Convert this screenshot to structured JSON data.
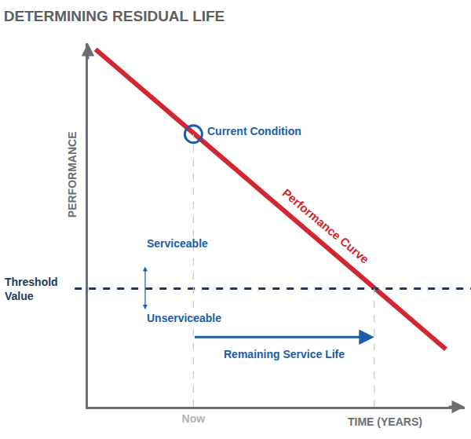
{
  "chart_data": {
    "type": "line",
    "title": "DETERMINING RESIDUAL LIFE",
    "x_label": "TIME (YEARS)",
    "y_label": "PERFORMANCE",
    "x": [
      2,
      95
    ],
    "series": [
      {
        "name": "Performance Curve",
        "color": "#d22630",
        "values": [
          118,
          19
        ]
      }
    ],
    "xlim": [
      0,
      100
    ],
    "ylim": [
      0,
      120
    ],
    "xticks": [
      {
        "value": 28,
        "label": "Now"
      }
    ],
    "yticks": [],
    "tick_labels": "x",
    "grid": false,
    "current_condition": {
      "label": "Current Condition",
      "x": 28,
      "y": 90
    },
    "threshold": {
      "label": "Threshold Value",
      "value": 39,
      "above": "Serviceable",
      "below": "Unserviceable"
    },
    "remaining_life": {
      "label": "Remaining Service Life",
      "from": 28,
      "to": 76,
      "y": 23
    }
  }
}
